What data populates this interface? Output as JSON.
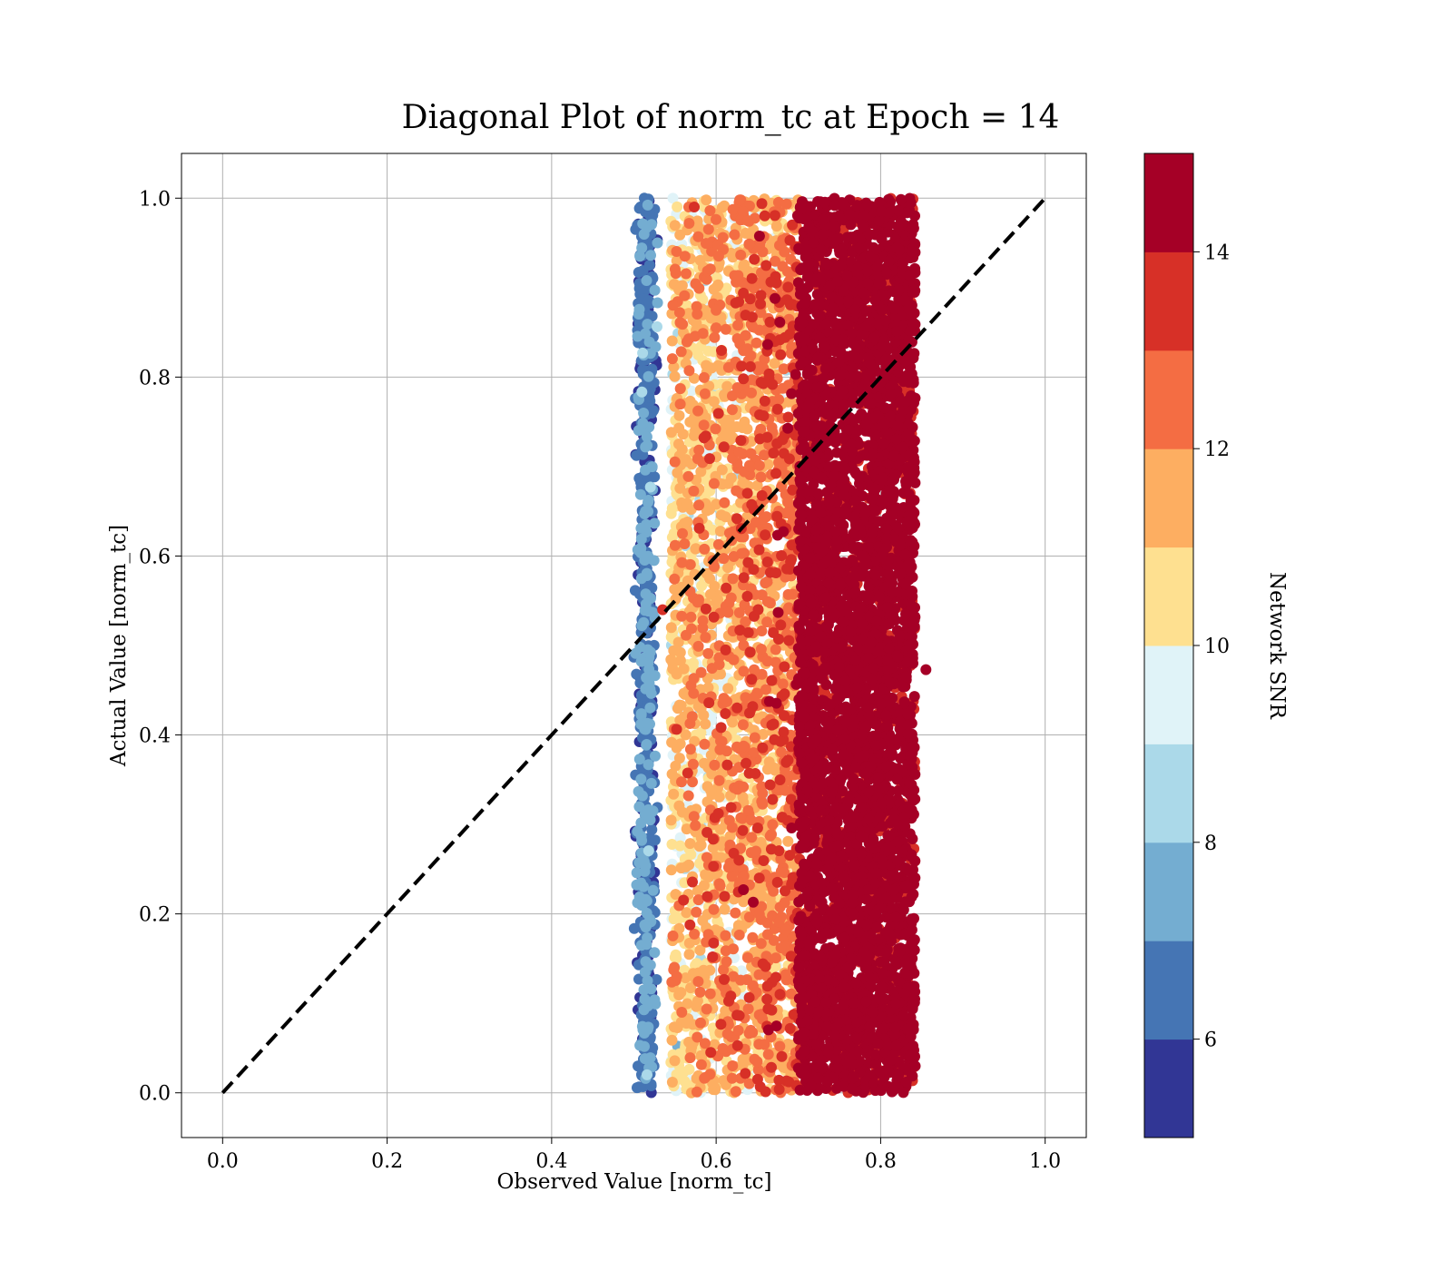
{
  "chart_data": {
    "type": "scatter",
    "title": "Diagonal Plot of norm_tc at Epoch = 14",
    "xlabel": "Observed Value [norm_tc]",
    "ylabel": "Actual Value [norm_tc]",
    "xlim": [
      -0.05,
      1.05
    ],
    "ylim": [
      -0.05,
      1.05
    ],
    "xticks": [
      "0.0",
      "0.2",
      "0.4",
      "0.6",
      "0.8",
      "1.0"
    ],
    "yticks": [
      "0.0",
      "0.2",
      "0.4",
      "0.6",
      "0.8",
      "1.0"
    ],
    "grid": true,
    "reference_line": {
      "style": "dashed",
      "color": "#000000",
      "from": [
        0,
        0
      ],
      "to": [
        1,
        1
      ]
    },
    "scatter_summary": {
      "x_range": [
        0.5,
        0.86
      ],
      "y_range": [
        0.0,
        1.0
      ],
      "snr_trend": "low SNR (blue) near x≈0.52, mid SNR (yellow/orange) at x≈0.55–0.68, high SNR (dark red) at x≈0.70–0.85",
      "sample_points": [
        {
          "x": 0.517,
          "y": 0.745,
          "snr": 5.5
        },
        {
          "x": 0.503,
          "y": 0.745,
          "snr": 5.5
        },
        {
          "x": 0.507,
          "y": 0.373,
          "snr": 7.8
        },
        {
          "x": 0.855,
          "y": 0.473,
          "snr": 14.5
        },
        {
          "x": 0.535,
          "y": 0.54,
          "snr": 13.5
        },
        {
          "x": 0.52,
          "y": 0.96,
          "snr": 6.5
        },
        {
          "x": 0.51,
          "y": 0.03,
          "snr": 5.5
        },
        {
          "x": 0.56,
          "y": 0.85,
          "snr": 11.5
        },
        {
          "x": 0.62,
          "y": 0.62,
          "snr": 12.5
        },
        {
          "x": 0.78,
          "y": 0.5,
          "snr": 14.5
        }
      ]
    },
    "colorbar": {
      "label": "Network SNR",
      "min": 5,
      "max": 15,
      "ticks": [
        "6",
        "8",
        "10",
        "12",
        "14"
      ],
      "tick_values": [
        6,
        8,
        10,
        12,
        14
      ],
      "colors": [
        "#313695",
        "#4575b4",
        "#74add1",
        "#abd9e9",
        "#e0f3f8",
        "#fee090",
        "#fdae61",
        "#f46d43",
        "#d73027",
        "#a50026"
      ]
    }
  }
}
